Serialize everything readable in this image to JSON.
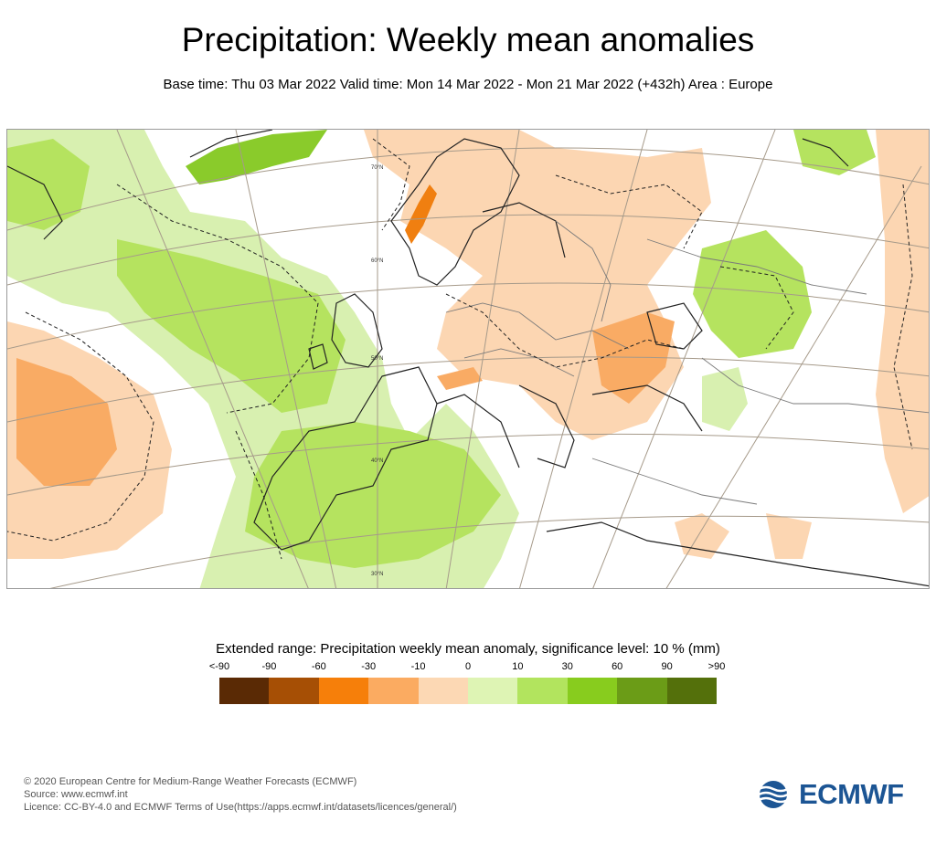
{
  "header": {
    "title": "Precipitation: Weekly mean anomalies",
    "subtitle": "Base time: Thu 03 Mar 2022 Valid time: Mon 14 Mar 2022 - Mon 21 Mar 2022 (+432h) Area : Europe"
  },
  "map": {
    "latitude_labels": [
      "70°N",
      "60°N",
      "50°N",
      "40°N",
      "30°N"
    ],
    "colors": {
      "ocean": "#ffffff",
      "wet_light": "#d8f0b0",
      "wet_mid": "#b5e35f",
      "wet_strong": "#8acb2b",
      "dry_light": "#fcd6b2",
      "dry_mid": "#f9ab64",
      "dry_strong": "#f07f10",
      "graticule": "#a69a8a",
      "coast": "#222222",
      "border": "#7a7a7a",
      "contour": "#222222"
    }
  },
  "legend": {
    "title": "Extended range: Precipitation weekly mean anomaly, significance level: 10 % (mm)",
    "labels": [
      "<-90",
      "-90",
      "-60",
      "-30",
      "-10",
      "0",
      "10",
      "30",
      "60",
      "90",
      ">90"
    ],
    "colors": [
      "#5a2a05",
      "#a64f05",
      "#f67f0a",
      "#fbab61",
      "#fcd8b4",
      "#def4b4",
      "#b2e45e",
      "#88cc1e",
      "#6b9c17",
      "#54700b"
    ]
  },
  "footer": {
    "copyright": "© 2020 European Centre for Medium-Range Weather Forecasts (ECMWF)",
    "source": "Source: www.ecmwf.int",
    "licence": "Licence: CC-BY-4.0 and ECMWF Terms of Use(https://apps.ecmwf.int/datasets/licences/general/)"
  },
  "logo": {
    "text": "ECMWF",
    "color": "#1c5594"
  }
}
